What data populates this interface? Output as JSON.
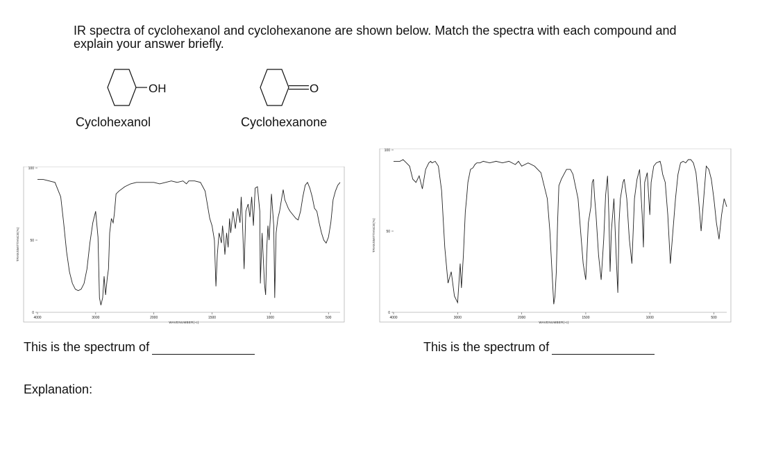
{
  "question": {
    "line1": "IR spectra of cyclohexanol and cyclohexanone are shown below.  Match the spectra with each compound and",
    "line2": "explain your answer briefly."
  },
  "compounds": [
    {
      "name": "Cyclohexanol",
      "substituent": "OH"
    },
    {
      "name": "Cyclohexanone",
      "substituent": "O"
    }
  ],
  "answers": {
    "left_prompt": "This is the spectrum of",
    "right_prompt": "This is the spectrum of",
    "explanation_label": "Explanation:"
  },
  "chart_data": [
    {
      "type": "line",
      "xlabel": "WAVENUMBER(-c)",
      "ylabel": "TRANSMITTANCE(%)",
      "xlim": [
        4000,
        400
      ],
      "ylim": [
        0,
        100
      ],
      "x_ticks": [
        "4000",
        "3000",
        "2000",
        "1500",
        "1000",
        "500"
      ],
      "y_ticks": [
        "0",
        "50",
        "100"
      ],
      "grid": false,
      "series": [
        {
          "x": [
            4000,
            3900,
            3800,
            3700,
            3600,
            3550,
            3500,
            3450,
            3400,
            3350,
            3300,
            3250,
            3200,
            3150,
            3100,
            3050,
            3000,
            2960,
            2935,
            2910,
            2880,
            2855,
            2830,
            2800,
            2780,
            2760,
            2730,
            2700,
            2680,
            2650,
            2600,
            2500,
            2400,
            2300,
            2200,
            2100,
            2050,
            2000,
            1950,
            1900,
            1850,
            1800,
            1750,
            1720,
            1700,
            1650,
            1600,
            1560,
            1520,
            1500,
            1480,
            1467,
            1455,
            1440,
            1420,
            1410,
            1400,
            1390,
            1375,
            1362,
            1350,
            1340,
            1320,
            1300,
            1280,
            1260,
            1250,
            1240,
            1225,
            1210,
            1190,
            1175,
            1160,
            1145,
            1130,
            1110,
            1090,
            1085,
            1070,
            1050,
            1040,
            1030,
            1020,
            1010,
            1000,
            990,
            970,
            962,
            950,
            935,
            920,
            900,
            889,
            875,
            860,
            845,
            830,
            800,
            780,
            760,
            740,
            720,
            700,
            680,
            660,
            640,
            620,
            600,
            580,
            560,
            540,
            520,
            500,
            480,
            460,
            440,
            420,
            400
          ],
          "y": [
            92,
            92,
            91,
            90,
            80,
            62,
            42,
            28,
            20,
            16,
            15,
            16,
            20,
            30,
            48,
            62,
            70,
            52,
            10,
            5,
            10,
            25,
            12,
            24,
            30,
            55,
            65,
            62,
            68,
            82,
            84,
            87,
            89,
            90,
            90,
            90,
            90,
            90,
            89,
            90,
            91,
            90,
            91,
            89,
            91,
            91,
            90,
            84,
            65,
            60,
            50,
            18,
            40,
            55,
            48,
            60,
            52,
            40,
            55,
            45,
            65,
            55,
            70,
            58,
            72,
            62,
            80,
            65,
            30,
            70,
            75,
            66,
            80,
            60,
            86,
            87,
            70,
            20,
            55,
            20,
            12,
            45,
            60,
            50,
            65,
            82,
            60,
            10,
            55,
            65,
            70,
            80,
            85,
            78,
            75,
            72,
            70,
            67,
            65,
            64,
            70,
            80,
            88,
            90,
            86,
            80,
            72,
            70,
            62,
            55,
            50,
            48,
            52,
            62,
            78,
            84,
            88,
            90
          ]
        }
      ]
    },
    {
      "type": "line",
      "xlabel": "WAVENUMBER(-c)",
      "ylabel": "TRANSMITTANCE(%)",
      "xlim": [
        4000,
        400
      ],
      "ylim": [
        0,
        100
      ],
      "x_ticks": [
        "4000",
        "3000",
        "2000",
        "1500",
        "1000",
        "500"
      ],
      "y_ticks": [
        "0",
        "50",
        "100"
      ],
      "grid": false,
      "series": [
        {
          "x": [
            4000,
            3900,
            3850,
            3800,
            3750,
            3700,
            3650,
            3600,
            3550,
            3500,
            3450,
            3420,
            3400,
            3350,
            3300,
            3250,
            3200,
            3150,
            3100,
            3050,
            3000,
            2960,
            2940,
            2910,
            2880,
            2860,
            2840,
            2800,
            2760,
            2730,
            2700,
            2650,
            2600,
            2500,
            2400,
            2300,
            2200,
            2100,
            2050,
            2000,
            1950,
            1900,
            1850,
            1800,
            1780,
            1760,
            1750,
            1740,
            1730,
            1720,
            1710,
            1700,
            1690,
            1670,
            1650,
            1620,
            1600,
            1560,
            1520,
            1500,
            1480,
            1460,
            1450,
            1440,
            1430,
            1420,
            1400,
            1380,
            1360,
            1345,
            1330,
            1320,
            1310,
            1300,
            1280,
            1260,
            1250,
            1240,
            1230,
            1210,
            1200,
            1180,
            1160,
            1140,
            1120,
            1100,
            1080,
            1060,
            1050,
            1040,
            1020,
            1000,
            990,
            970,
            950,
            920,
            910,
            900,
            880,
            860,
            840,
            820,
            800,
            780,
            760,
            740,
            720,
            700,
            680,
            660,
            640,
            620,
            600,
            580,
            560,
            540,
            520,
            500,
            480,
            460,
            440,
            420,
            400
          ],
          "y": [
            93,
            93,
            94,
            92,
            90,
            82,
            80,
            84,
            76,
            88,
            92,
            93,
            92,
            93,
            90,
            75,
            40,
            18,
            25,
            10,
            6,
            30,
            15,
            35,
            62,
            70,
            80,
            88,
            89,
            91,
            92,
            92,
            93,
            92,
            93,
            92,
            93,
            91,
            93,
            90,
            92,
            90,
            86,
            70,
            50,
            20,
            5,
            10,
            25,
            55,
            78,
            80,
            82,
            85,
            88,
            88,
            85,
            70,
            30,
            20,
            55,
            65,
            80,
            82,
            70,
            60,
            35,
            20,
            45,
            72,
            84,
            60,
            25,
            50,
            70,
            30,
            12,
            55,
            70,
            80,
            82,
            70,
            45,
            30,
            70,
            82,
            88,
            60,
            40,
            80,
            86,
            60,
            80,
            90,
            92,
            93,
            90,
            85,
            80,
            60,
            30,
            50,
            70,
            85,
            92,
            93,
            92,
            94,
            94,
            92,
            86,
            70,
            50,
            70,
            90,
            88,
            82,
            70,
            55,
            45,
            60,
            70,
            65
          ]
        }
      ]
    }
  ]
}
